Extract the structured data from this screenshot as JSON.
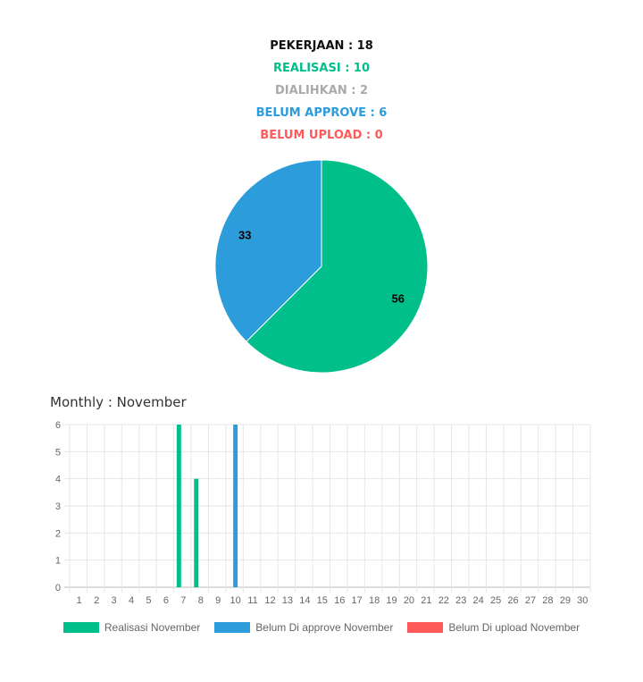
{
  "summary": [
    {
      "text": "PEKERJAAN : 18",
      "color": "#111111"
    },
    {
      "text": "REALISASI : 10",
      "color": "#00bf8a"
    },
    {
      "text": "DIALIHKAN : 2",
      "color": "#aaaaaa"
    },
    {
      "text": "BELUM APPROVE : 6",
      "color": "#2d9cdb"
    },
    {
      "text": "BELUM UPLOAD : 0",
      "color": "#ff5a5a"
    }
  ],
  "chart_data": [
    {
      "type": "pie",
      "slices": [
        {
          "value": 10,
          "label": "56",
          "color": "#00bf8a"
        },
        {
          "value": 6,
          "label": "33",
          "color": "#2d9cdb"
        }
      ]
    },
    {
      "type": "bar",
      "title": "Monthly : November",
      "categories": [
        "1",
        "2",
        "3",
        "4",
        "5",
        "6",
        "7",
        "8",
        "9",
        "10",
        "11",
        "12",
        "13",
        "14",
        "15",
        "16",
        "17",
        "18",
        "19",
        "20",
        "21",
        "22",
        "23",
        "24",
        "25",
        "26",
        "27",
        "28",
        "29",
        "30"
      ],
      "ylim": [
        0,
        6
      ],
      "yticks": [
        "0",
        "1",
        "2",
        "3",
        "4",
        "5",
        "6"
      ],
      "grid": true,
      "legend": "bottom",
      "series": [
        {
          "name": "Realisasi November",
          "color": "#00bf8a",
          "values": [
            0,
            0,
            0,
            0,
            0,
            0,
            6,
            4,
            0,
            0,
            0,
            0,
            0,
            0,
            0,
            0,
            0,
            0,
            0,
            0,
            0,
            0,
            0,
            0,
            0,
            0,
            0,
            0,
            0,
            0
          ]
        },
        {
          "name": "Belum Di approve November",
          "color": "#2d9cdb",
          "values": [
            0,
            0,
            0,
            0,
            0,
            0,
            0,
            0,
            0,
            6,
            0,
            0,
            0,
            0,
            0,
            0,
            0,
            0,
            0,
            0,
            0,
            0,
            0,
            0,
            0,
            0,
            0,
            0,
            0,
            0
          ]
        },
        {
          "name": "Belum Di upload November",
          "color": "#ff5a5a",
          "values": [
            0,
            0,
            0,
            0,
            0,
            0,
            0,
            0,
            0,
            0,
            0,
            0,
            0,
            0,
            0,
            0,
            0,
            0,
            0,
            0,
            0,
            0,
            0,
            0,
            0,
            0,
            0,
            0,
            0,
            0
          ]
        }
      ]
    }
  ]
}
